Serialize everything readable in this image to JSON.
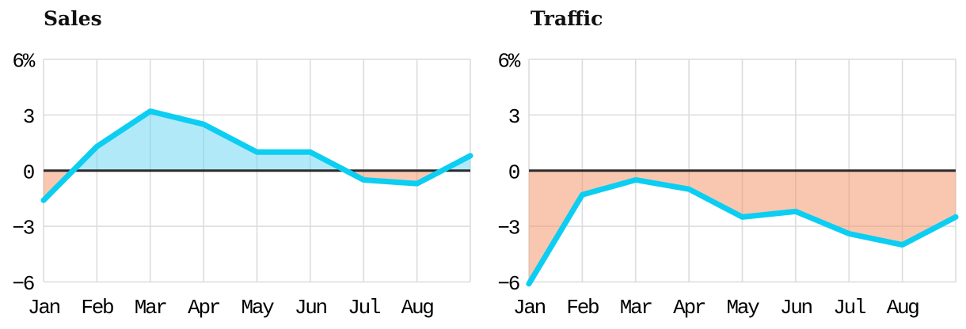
{
  "page": {
    "background": "#ffffff"
  },
  "chart_data": [
    {
      "type": "area",
      "title": "Sales",
      "categories": [
        "Jan",
        "Feb",
        "Mar",
        "Apr",
        "May",
        "Jun",
        "Jul",
        "Aug",
        ""
      ],
      "values": [
        -1.6,
        1.3,
        3.2,
        2.5,
        1.0,
        1.0,
        -0.5,
        -0.7,
        0.8
      ],
      "unit": "%",
      "ylim": [
        -6,
        6
      ],
      "yticks": [
        {
          "v": 6,
          "label": "6%"
        },
        {
          "v": 3,
          "label": "3"
        },
        {
          "v": 0,
          "label": "0"
        },
        {
          "v": -3,
          "label": "−3"
        },
        {
          "v": -6,
          "label": "−6"
        }
      ],
      "baseline": 0,
      "grid": true,
      "legend_position": "none"
    },
    {
      "type": "area",
      "title": "Traffic",
      "categories": [
        "Jan",
        "Feb",
        "Mar",
        "Apr",
        "May",
        "Jun",
        "Jul",
        "Aug",
        ""
      ],
      "values": [
        -6.1,
        -1.3,
        -0.5,
        -1.0,
        -2.5,
        -2.2,
        -3.4,
        -4.0,
        -2.5
      ],
      "unit": "%",
      "ylim": [
        -6,
        6
      ],
      "yticks": [
        {
          "v": 6,
          "label": "6%"
        },
        {
          "v": 3,
          "label": "3"
        },
        {
          "v": 0,
          "label": "0"
        },
        {
          "v": -3,
          "label": "−3"
        },
        {
          "v": -6,
          "label": "−6"
        }
      ],
      "baseline": 0,
      "grid": true,
      "legend_position": "none"
    }
  ],
  "colors": {
    "line": "#0BCEF2",
    "fill_positive": "#66D4F2",
    "fill_negative": "#F38F61",
    "fill_opacity": 0.5,
    "gridline": "#DCDCDC",
    "zero_line": "#2A2A2A",
    "label": "#000000",
    "background": "#FFFFFF"
  }
}
